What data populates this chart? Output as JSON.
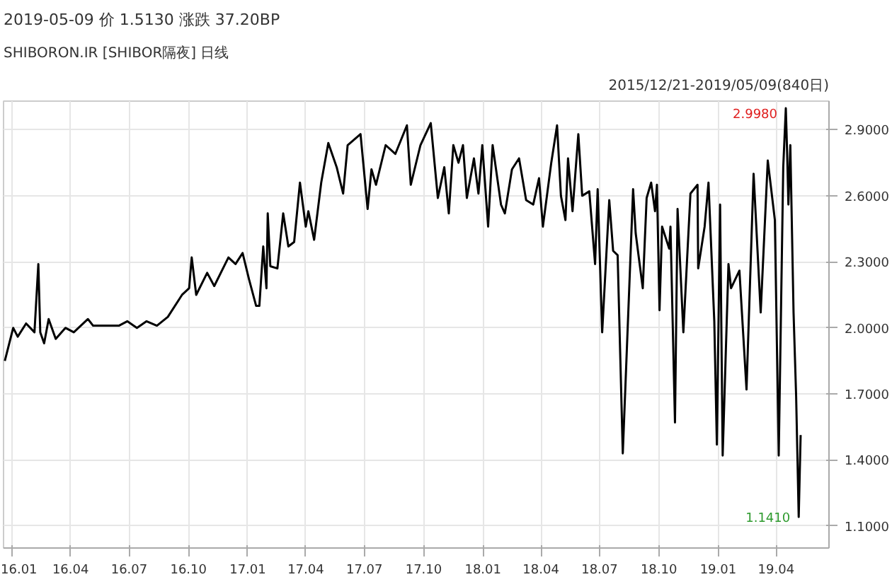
{
  "chart_data": {
    "type": "line",
    "title": "2019-05-09  价 1.5130  涨跌 37.20BP",
    "subtitle": "SHIBORON.IR [SHIBOR隔夜] 日线",
    "annotations": [
      "2015/12/21-2019/05/09(840日)",
      {
        "text": "2.9980",
        "x": "2019-04-16",
        "y": 2.998
      },
      {
        "text": "1.1410",
        "x": "2019-05-06",
        "y": 1.141
      }
    ],
    "x": [
      "2015-12-21",
      "2016-01-03",
      "2016-01-10",
      "2016-01-23",
      "2016-02-05",
      "2016-02-11",
      "2016-02-14",
      "2016-02-20",
      "2016-02-27",
      "2016-03-09",
      "2016-03-24",
      "2016-04-06",
      "2016-04-28",
      "2016-05-06",
      "2016-05-17",
      "2016-06-15",
      "2016-06-28",
      "2016-07-13",
      "2016-07-28",
      "2016-08-13",
      "2016-08-30",
      "2016-09-21",
      "2016-10-02",
      "2016-10-06",
      "2016-10-13",
      "2016-10-30",
      "2016-11-10",
      "2016-12-02",
      "2016-12-13",
      "2016-12-24",
      "2017-01-03",
      "2017-01-14",
      "2017-01-19",
      "2017-01-25",
      "2017-01-30",
      "2017-02-01",
      "2017-02-05",
      "2017-02-16",
      "2017-02-25",
      "2017-03-05",
      "2017-03-14",
      "2017-03-23",
      "2017-04-01",
      "2017-04-05",
      "2017-04-14",
      "2017-04-25",
      "2017-05-06",
      "2017-05-19",
      "2017-05-29",
      "2017-06-05",
      "2017-06-25",
      "2017-07-06",
      "2017-07-12",
      "2017-07-19",
      "2017-08-03",
      "2017-08-18",
      "2017-09-05",
      "2017-09-11",
      "2017-09-26",
      "2017-10-12",
      "2017-10-23",
      "2017-11-02",
      "2017-11-09",
      "2017-11-16",
      "2017-11-24",
      "2017-12-01",
      "2017-12-07",
      "2017-12-18",
      "2017-12-25",
      "2017-12-31",
      "2018-01-09",
      "2018-01-16",
      "2018-01-29",
      "2018-02-04",
      "2018-02-15",
      "2018-02-26",
      "2018-03-09",
      "2018-03-20",
      "2018-03-29",
      "2018-04-04",
      "2018-04-17",
      "2018-04-26",
      "2018-05-02",
      "2018-05-09",
      "2018-05-13",
      "2018-05-20",
      "2018-05-29",
      "2018-06-04",
      "2018-06-15",
      "2018-06-24",
      "2018-06-28",
      "2018-07-05",
      "2018-07-16",
      "2018-07-22",
      "2018-07-29",
      "2018-08-06",
      "2018-08-22",
      "2018-08-26",
      "2018-09-06",
      "2018-09-12",
      "2018-09-19",
      "2018-09-25",
      "2018-09-28",
      "2018-10-02",
      "2018-10-06",
      "2018-10-17",
      "2018-10-19",
      "2018-10-26",
      "2018-10-30",
      "2018-11-08",
      "2018-11-19",
      "2018-11-30",
      "2018-12-01",
      "2018-12-11",
      "2018-12-17",
      "2018-12-26",
      "2018-12-30",
      "2019-01-04",
      "2019-01-08",
      "2019-01-17",
      "2019-01-21",
      "2019-02-03",
      "2019-02-14",
      "2019-02-25",
      "2019-03-08",
      "2019-03-19",
      "2019-03-30",
      "2019-04-05",
      "2019-04-12",
      "2019-04-16",
      "2019-04-18",
      "2019-04-20",
      "2019-04-23",
      "2019-04-28",
      "2019-05-02",
      "2019-05-06",
      "2019-05-09"
    ],
    "series": [
      {
        "color": "#000000",
        "values": [
          1.85,
          2.0,
          1.96,
          2.02,
          1.98,
          2.29,
          1.98,
          1.93,
          2.04,
          1.95,
          2.0,
          1.98,
          2.04,
          2.01,
          2.01,
          2.01,
          2.03,
          2.0,
          2.03,
          2.01,
          2.05,
          2.15,
          2.18,
          2.32,
          2.15,
          2.25,
          2.19,
          2.32,
          2.29,
          2.34,
          2.22,
          2.1,
          2.1,
          2.37,
          2.18,
          2.52,
          2.28,
          2.27,
          2.52,
          2.37,
          2.39,
          2.66,
          2.46,
          2.53,
          2.4,
          2.66,
          2.84,
          2.73,
          2.61,
          2.83,
          2.88,
          2.54,
          2.72,
          2.65,
          2.83,
          2.79,
          2.92,
          2.65,
          2.83,
          2.93,
          2.59,
          2.73,
          2.52,
          2.83,
          2.75,
          2.83,
          2.59,
          2.77,
          2.61,
          2.83,
          2.46,
          2.83,
          2.56,
          2.52,
          2.72,
          2.77,
          2.58,
          2.56,
          2.68,
          2.46,
          2.75,
          2.92,
          2.6,
          2.49,
          2.77,
          2.53,
          2.88,
          2.6,
          2.62,
          2.29,
          2.63,
          1.98,
          2.58,
          2.35,
          2.33,
          1.43,
          2.63,
          2.43,
          2.18,
          2.59,
          2.66,
          2.53,
          2.65,
          2.08,
          2.46,
          2.36,
          2.46,
          1.57,
          2.54,
          1.98,
          2.61,
          2.65,
          2.27,
          2.46,
          2.66,
          2.03,
          1.47,
          2.56,
          1.42,
          2.29,
          2.18,
          2.26,
          1.72,
          2.7,
          2.07,
          2.76,
          2.49,
          1.42,
          2.73,
          2.998,
          2.8,
          2.56,
          2.83,
          2.07,
          1.69,
          1.141,
          1.513
        ]
      }
    ],
    "xlim": [
      "2015-12-19",
      "2019-06-22"
    ],
    "ylim": [
      1.0,
      3.03
    ],
    "xticks": [
      {
        "value": "2016-01-01",
        "label": "16.01"
      },
      {
        "value": "2016-04-01",
        "label": "16.04"
      },
      {
        "value": "2016-07-01",
        "label": "16.07"
      },
      {
        "value": "2016-10-01",
        "label": "16.10"
      },
      {
        "value": "2017-01-01",
        "label": "17.01"
      },
      {
        "value": "2017-04-01",
        "label": "17.04"
      },
      {
        "value": "2017-07-01",
        "label": "17.07"
      },
      {
        "value": "2017-10-01",
        "label": "17.10"
      },
      {
        "value": "2018-01-01",
        "label": "18.01"
      },
      {
        "value": "2018-04-01",
        "label": "18.04"
      },
      {
        "value": "2018-07-01",
        "label": "18.07"
      },
      {
        "value": "2018-10-01",
        "label": "18.10"
      },
      {
        "value": "2019-01-01",
        "label": "19.01"
      },
      {
        "value": "2019-04-01",
        "label": "19.04"
      }
    ],
    "yticks": [
      {
        "value": 1.1,
        "label": "1.1000"
      },
      {
        "value": 1.4,
        "label": "1.4000"
      },
      {
        "value": 1.7,
        "label": "1.7000"
      },
      {
        "value": 2.0,
        "label": "2.0000"
      },
      {
        "value": 2.3,
        "label": "2.3000"
      },
      {
        "value": 2.6,
        "label": "2.6000"
      },
      {
        "value": 2.9,
        "label": "2.9000"
      }
    ],
    "grid": true,
    "marker": "none",
    "line_style": "solid"
  }
}
